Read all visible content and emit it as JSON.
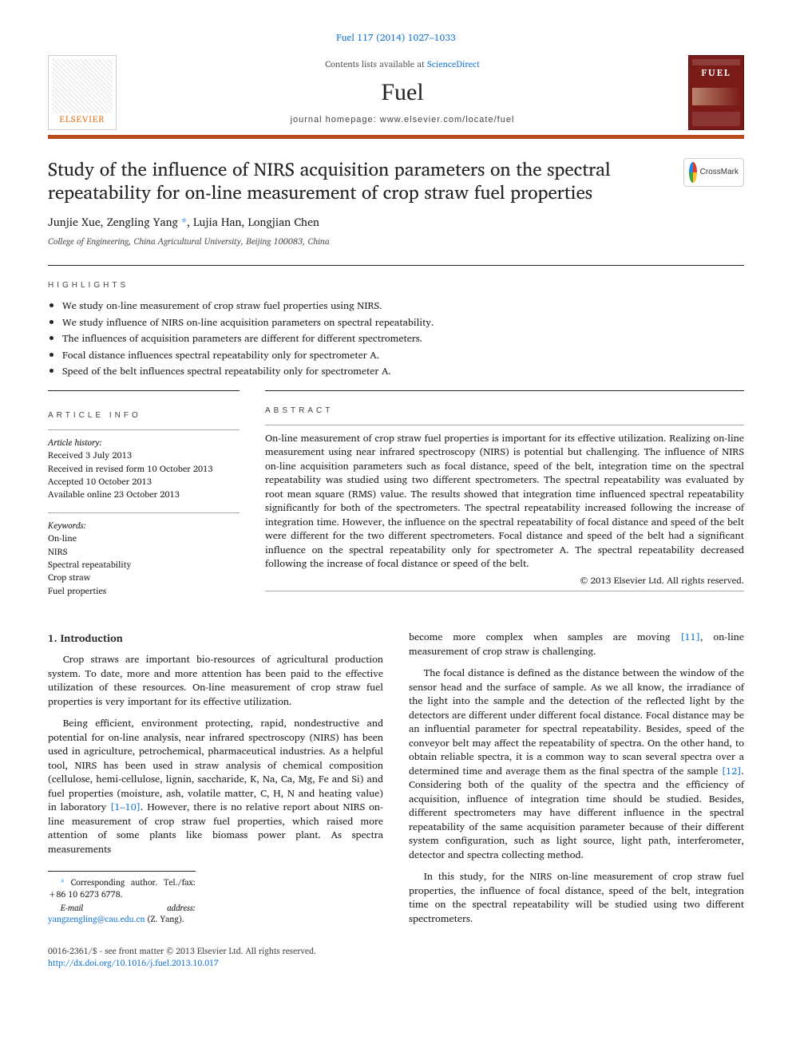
{
  "citation": {
    "text": "Fuel 117 (2014) 1027–1033",
    "link_color": "#1976d2"
  },
  "header": {
    "contents_prefix": "Contents lists available at ",
    "contents_link": "ScienceDirect",
    "journal": "Fuel",
    "homepage_label": "journal homepage: www.elsevier.com/locate/fuel",
    "elsevier_label": "ELSEVIER",
    "cover_title": "FUEL",
    "band_color": "#b84a1e",
    "cover_bg": "#7a1b18"
  },
  "crossmark": {
    "label": "CrossMark"
  },
  "title": "Study of the influence of NIRS acquisition parameters on the spectral repeatability for on-line measurement of crop straw fuel properties",
  "authors_line": "Junjie Xue, Zengling Yang",
  "authors_after": ", Lujia Han, Longjian Chen",
  "corresponding_marker": "*",
  "affiliation": "College of Engineering, China Agricultural University, Beijing 100083, China",
  "sections": {
    "highlights": "highlights",
    "article_info": "article info",
    "abstract": "abstract"
  },
  "highlights": [
    "We study on-line measurement of crop straw fuel properties using NIRS.",
    "We study influence of NIRS on-line acquisition parameters on spectral repeatability.",
    "The influences of acquisition parameters are different for different spectrometers.",
    "Focal distance influences spectral repeatability only for spectrometer A.",
    "Speed of the belt influences spectral repeatability only for spectrometer A."
  ],
  "article_info": {
    "history_label": "Article history:",
    "history": [
      "Received 3 July 2013",
      "Received in revised form 10 October 2013",
      "Accepted 10 October 2013",
      "Available online 23 October 2013"
    ],
    "keywords_label": "Keywords:",
    "keywords": [
      "On-line",
      "NIRS",
      "Spectral repeatability",
      "Crop straw",
      "Fuel properties"
    ]
  },
  "abstract": "On-line measurement of crop straw fuel properties is important for its effective utilization. Realizing on-line measurement using near infrared spectroscopy (NIRS) is potential but challenging. The influence of NIRS on-line acquisition parameters such as focal distance, speed of the belt, integration time on the spectral repeatability was studied using two different spectrometers. The spectral repeatability was evaluated by root mean square (RMS) value. The results showed that integration time influenced spectral repeatability significantly for both of the spectrometers. The spectral repeatability increased following the increase of integration time. However, the influence on the spectral repeatability of focal distance and speed of the belt were different for the two different spectrometers. Focal distance and speed of the belt had a significant influence on the spectral repeatability only for spectrometer A. The spectral repeatability decreased following the increase of focal distance or speed of the belt.",
  "copyright": "© 2013 Elsevier Ltd. All rights reserved.",
  "intro": {
    "heading": "1. Introduction",
    "p1": "Crop straws are important bio-resources of agricultural production system. To date, more and more attention has been paid to the effective utilization of these resources. On-line measurement of crop straw fuel properties is very important for its effective utilization.",
    "p2a": "Being efficient, environment protecting, rapid, nondestructive and potential for on-line analysis, near infrared spectroscopy (NIRS) has been used in agriculture, petrochemical, pharmaceutical industries. As a helpful tool, NIRS has been used in straw analysis of chemical composition (cellulose, hemi-cellulose, lignin, saccharide, K, Na, Ca, Mg, Fe and Si) and fuel properties (moisture, ash, volatile matter, C, H, N and heating value) in laboratory ",
    "p2_ref1": "[1–10]",
    "p2b": ". However, there is no relative report about NIRS on-line measurement of crop straw fuel properties, which raised more attention of some plants like biomass power plant. As spectra measurements",
    "col2_lead": "become more complex when samples are moving ",
    "col2_ref": "[11]",
    "col2_lead2": ", on-line measurement of crop straw is challenging.",
    "p3a": "The focal distance is defined as the distance between the window of the sensor head and the surface of sample. As we all know, the irradiance of the light into the sample and the detection of the reflected light by the detectors are different under different focal distance. Focal distance may be an influential parameter for spectral repeatability. Besides, speed of the conveyor belt may affect the repeatability of spectra. On the other hand, to obtain reliable spectra, it is a common way to scan several spectra over a determined time and average them as the final spectra of the sample ",
    "p3_ref": "[12]",
    "p3b": ". Considering both of the quality of the spectra and the efficiency of acquisition, influence of integration time should be studied. Besides, different spectrometers may have different influence in the spectral repeatability of the same acquisition parameter because of their different system configuration, such as light source, light path, interferometer, detector and spectra collecting method.",
    "p4": "In this study, for the NIRS on-line measurement of crop straw fuel properties, the influence of focal distance, speed of the belt, integration time on the spectral repeatability will be studied using two different spectrometers."
  },
  "footnote": {
    "corr": "Corresponding author. Tel./fax: +86 10 6273 6778.",
    "email_label": "E-mail address: ",
    "email": "yangzengling@cau.edu.cn",
    "email_tail": " (Z. Yang)."
  },
  "footer": {
    "line1": "0016-2361/$ - see front matter © 2013 Elsevier Ltd. All rights reserved.",
    "doi": "http://dx.doi.org/10.1016/j.fuel.2013.10.017"
  }
}
